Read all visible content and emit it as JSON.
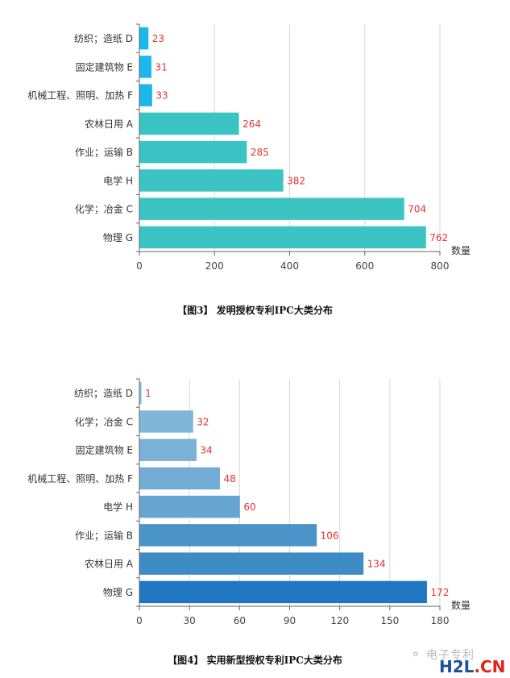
{
  "charts": [
    {
      "caption": "【图3】 发明授权专利IPC大类分布",
      "chart_data": {
        "type": "bar",
        "orientation": "horizontal",
        "categories": [
          "纺织；造纸 D",
          "固定建筑物 E",
          "机械工程、照明、加热 F",
          "农林日用 A",
          "作业；运输 B",
          "电学 H",
          "化学；冶金 C",
          "物理 G"
        ],
        "values": [
          23,
          31,
          33,
          264,
          285,
          382,
          704,
          762
        ],
        "xlabel": "数量",
        "xlim": [
          0,
          800
        ],
        "xticks": [
          0,
          200,
          400,
          600,
          800
        ],
        "grid": true,
        "bar_colors": [
          "#1ab8ec",
          "#1ab8ec",
          "#1ab8ec",
          "#3cc4c4",
          "#3cc4c4",
          "#3cc4c4",
          "#3cc4c4",
          "#3cc4c4"
        ],
        "label_color": "#e8322d"
      }
    },
    {
      "caption": "【图4】 实用新型授权专利IPC大类分布",
      "chart_data": {
        "type": "bar",
        "orientation": "horizontal",
        "categories": [
          "纺织；造纸 D",
          "化学；冶金 C",
          "固定建筑物 E",
          "机械工程、照明、加热 F",
          "电学 H",
          "作业；运输 B",
          "农林日用 A",
          "物理 G"
        ],
        "values": [
          1,
          32,
          34,
          48,
          60,
          106,
          134,
          172
        ],
        "xlabel": "数量",
        "xlim": [
          0,
          180
        ],
        "xticks": [
          0,
          30,
          60,
          90,
          120,
          150,
          180
        ],
        "grid": true,
        "bar_colors": [
          "#89bde0",
          "#80b6da",
          "#7ab1d6",
          "#72acd4",
          "#67a5d1",
          "#4a94c9",
          "#3e8cc6",
          "#1f77c1"
        ],
        "label_color": "#e8322d"
      }
    }
  ],
  "watermark": {
    "text": "电子专利",
    "logo_main": "H2L",
    "logo_suffix": ".CN"
  }
}
